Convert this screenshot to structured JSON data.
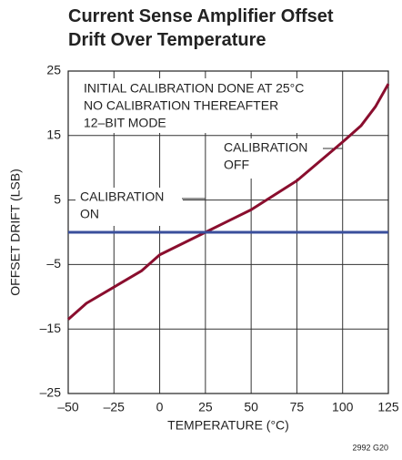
{
  "chart_data": {
    "type": "line",
    "title": [
      "Current Sense Amplifier Offset",
      "Drift Over Temperature"
    ],
    "x_label": "TEMPERATURE (°C)",
    "y_label": "OFFSET DRIFT (LSB)",
    "series": [
      {
        "name": "CALIBRATION OFF",
        "color": "#8a0e2e",
        "x": [
          -50,
          -40,
          -25,
          -10,
          0,
          25,
          50,
          75,
          100,
          110,
          118,
          125
        ],
        "values": [
          -13.5,
          -11,
          -8.5,
          -6,
          -3.5,
          0,
          3.5,
          8,
          14,
          16.5,
          19.5,
          23
        ]
      },
      {
        "name": "CALIBRATION ON",
        "color": "#3a4f9c",
        "x": [
          -50,
          125
        ],
        "values": [
          0,
          0
        ]
      }
    ],
    "xlim": [
      -50,
      125
    ],
    "xticks": [
      {
        "value": -50,
        "label": "–50"
      },
      {
        "value": -25,
        "label": "–25"
      },
      0,
      25,
      50,
      75,
      100,
      125
    ],
    "ylim": [
      -25,
      25
    ],
    "yticks": [
      {
        "value": -25,
        "label": "–25"
      },
      {
        "value": -15,
        "label": "–15"
      },
      {
        "value": -5,
        "label": "–5"
      },
      5,
      15,
      25
    ],
    "grid": true,
    "annotations": [
      [
        "INITIAL CALIBRATION DONE AT 25°C",
        "NO CALIBRATION THEREAFTER",
        "12–BIT MODE"
      ],
      [
        "CALIBRATION",
        "OFF"
      ],
      [
        "CALIBRATION",
        "ON"
      ]
    ],
    "footnote": "2992 G20"
  }
}
